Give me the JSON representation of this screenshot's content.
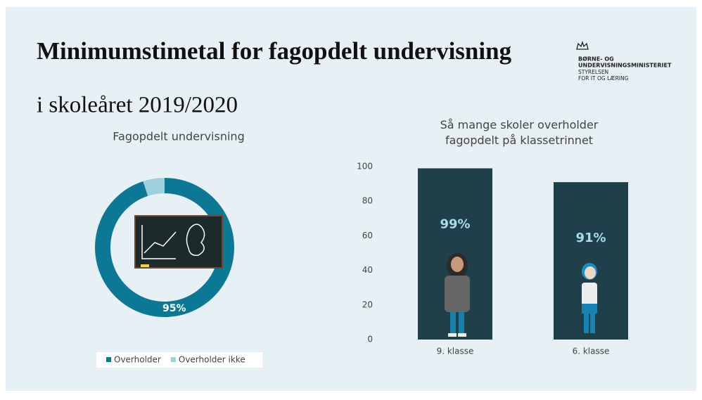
{
  "header": {
    "title": "Minimumstimetal for fagopdelt undervisning",
    "subtitle": "i skoleåret 2019/2020"
  },
  "logo": {
    "lines": [
      "BØRNE- OG",
      "UNDERVISNINGSMINISTERIET",
      "STYRELSEN",
      "FOR IT OG LÆRING"
    ]
  },
  "chart_data": [
    {
      "type": "pie",
      "title": "Fagopdelt undervisning",
      "categories": [
        "Overholder",
        "Overholder ikke"
      ],
      "values": [
        95,
        5
      ],
      "value_labels": [
        "95%",
        null
      ],
      "colors": [
        "#0b7896",
        "#9fd0de"
      ],
      "legend": "bottom"
    },
    {
      "type": "bar",
      "title": "Så mange skoler overholder fagopdelt på klassetrinnet",
      "categories": [
        "9. klasse",
        "6. klasse"
      ],
      "values": [
        99,
        91
      ],
      "value_labels": [
        "99%",
        "91%"
      ],
      "color": "#1f3f4b",
      "label_color": "#a9dbe8",
      "ylim": [
        0,
        100
      ],
      "yticks": [
        0,
        20,
        40,
        60,
        80,
        100
      ],
      "grid": false
    }
  ]
}
